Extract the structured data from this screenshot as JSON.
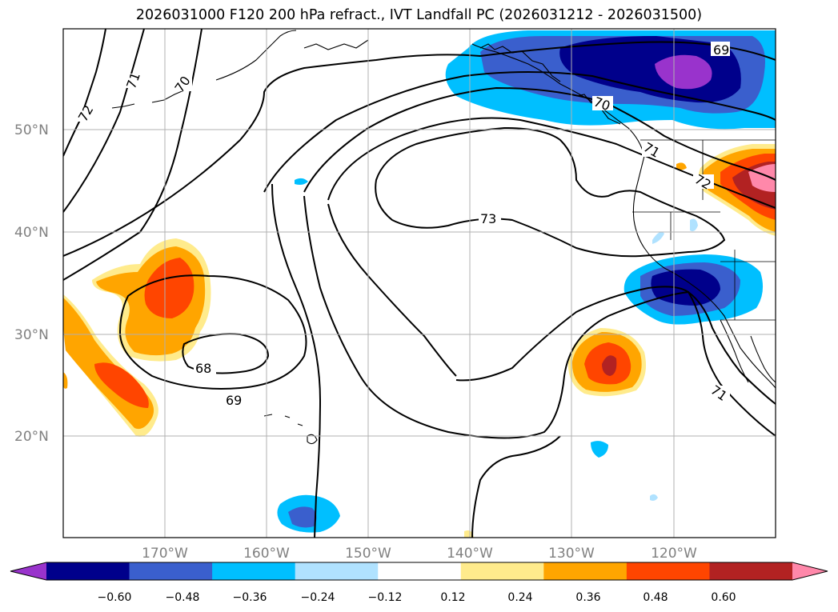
{
  "title": "2026031000 F120 200 hPa refract., IVT Landfall PC (2026031212 - 2026031500)",
  "lat_labels": [
    "50°N",
    "40°N",
    "30°N",
    "20°N"
  ],
  "lon_labels": [
    "170°W",
    "160°W",
    "150°W",
    "140°W",
    "130°W",
    "120°W"
  ],
  "contour_labels": [
    "72",
    "71",
    "70",
    "69",
    "73",
    "68",
    "69",
    "70",
    "71",
    "72",
    "71"
  ],
  "colorbar": {
    "ticks": [
      "−0.60",
      "−0.48",
      "−0.36",
      "−0.24",
      "−0.12",
      "0.12",
      "0.24",
      "0.36",
      "0.48",
      "0.60"
    ],
    "colors": [
      "#9933cc",
      "#00008b",
      "#3a5fcd",
      "#00bfff",
      "#b0e2ff",
      "#ffffff",
      "#ffeb8c",
      "#ffa500",
      "#ff4500",
      "#b22222",
      "#ff88aa"
    ]
  }
}
